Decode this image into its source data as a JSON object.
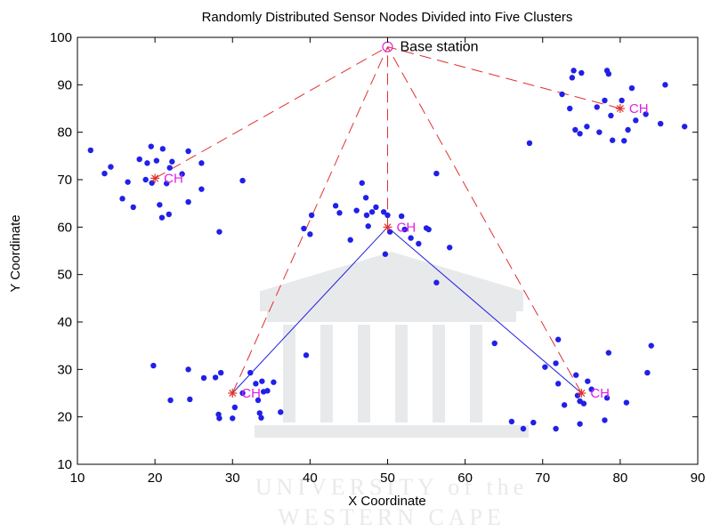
{
  "chart_data": {
    "type": "scatter",
    "title": "Randomly Distributed Sensor Nodes Divided into Five Clusters",
    "xlabel": "X Coordinate",
    "ylabel": "Y Coordinate",
    "xlim": [
      10,
      90
    ],
    "ylim": [
      10,
      100
    ],
    "xticks": [
      10,
      20,
      30,
      40,
      50,
      60,
      70,
      80,
      90
    ],
    "yticks": [
      10,
      20,
      30,
      40,
      50,
      60,
      70,
      80,
      90,
      100
    ],
    "grid": false,
    "colors": {
      "nodes": "#2020e8",
      "cluster_head": "#e03030",
      "ch_label": "#e020e0",
      "base_station": "#e020e0",
      "ch_to_bs_line": "#e03030",
      "inter_ch_line": "#2020e0"
    },
    "base_station": {
      "label": "Base station",
      "x": 50,
      "y": 98
    },
    "cluster_head_label": "CH",
    "cluster_heads": [
      {
        "x": 20,
        "y": 70.3
      },
      {
        "x": 80,
        "y": 85
      },
      {
        "x": 50,
        "y": 60
      },
      {
        "x": 30,
        "y": 25
      },
      {
        "x": 75,
        "y": 25
      }
    ],
    "nodes": [
      [
        11.7,
        76.2
      ],
      [
        13.5,
        71.3
      ],
      [
        14.3,
        72.7
      ],
      [
        15.8,
        66
      ],
      [
        16.5,
        69.5
      ],
      [
        17.2,
        64.2
      ],
      [
        18,
        74.3
      ],
      [
        18.8,
        70
      ],
      [
        19,
        73.5
      ],
      [
        19.5,
        77
      ],
      [
        19.6,
        69.3
      ],
      [
        20.2,
        74
      ],
      [
        20.6,
        64.7
      ],
      [
        20.9,
        62
      ],
      [
        21,
        76.5
      ],
      [
        21.5,
        69.2
      ],
      [
        21.8,
        62.7
      ],
      [
        21.9,
        72.5
      ],
      [
        22.2,
        73.8
      ],
      [
        23.5,
        71.2
      ],
      [
        24.3,
        76
      ],
      [
        24.3,
        65.3
      ],
      [
        26,
        73.5
      ],
      [
        26,
        68
      ],
      [
        28.3,
        59
      ],
      [
        31.3,
        69.8
      ],
      [
        72.5,
        88
      ],
      [
        73.5,
        85
      ],
      [
        73.8,
        91.5
      ],
      [
        74,
        93
      ],
      [
        74.2,
        80.5
      ],
      [
        74.8,
        79.7
      ],
      [
        75,
        92.5
      ],
      [
        75.7,
        81.2
      ],
      [
        77,
        85.3
      ],
      [
        77.3,
        80
      ],
      [
        78,
        86.7
      ],
      [
        78.5,
        92.3
      ],
      [
        78.3,
        93
      ],
      [
        78.8,
        83.5
      ],
      [
        79,
        78.3
      ],
      [
        80.2,
        86.7
      ],
      [
        80.5,
        78.2
      ],
      [
        81,
        80.5
      ],
      [
        81.5,
        89.3
      ],
      [
        82,
        82.5
      ],
      [
        83.3,
        83.8
      ],
      [
        85.2,
        81.8
      ],
      [
        85.8,
        90
      ],
      [
        88.3,
        81.2
      ],
      [
        39.2,
        59.7
      ],
      [
        40,
        58.5
      ],
      [
        40.2,
        62.5
      ],
      [
        43.3,
        64.5
      ],
      [
        43.8,
        63
      ],
      [
        45.2,
        57.3
      ],
      [
        46,
        63.5
      ],
      [
        46.7,
        69.3
      ],
      [
        47.2,
        66.2
      ],
      [
        47.3,
        62.5
      ],
      [
        47.5,
        60.2
      ],
      [
        48,
        63.2
      ],
      [
        48.5,
        64.2
      ],
      [
        49.5,
        63.2
      ],
      [
        49.7,
        54.3
      ],
      [
        50,
        62.5
      ],
      [
        50.3,
        59
      ],
      [
        51.8,
        62.3
      ],
      [
        52.2,
        59.5
      ],
      [
        53,
        57.7
      ],
      [
        54,
        56.5
      ],
      [
        55,
        59.8
      ],
      [
        55.3,
        59.5
      ],
      [
        56.3,
        71.3
      ],
      [
        56.3,
        48.3
      ],
      [
        58,
        55.7
      ],
      [
        63.8,
        35.5
      ],
      [
        68.3,
        77.7
      ],
      [
        19.8,
        30.8
      ],
      [
        22,
        23.5
      ],
      [
        24.3,
        30
      ],
      [
        24.5,
        23.7
      ],
      [
        26.3,
        28.2
      ],
      [
        27.8,
        28.3
      ],
      [
        28.2,
        20.5
      ],
      [
        28.3,
        19.7
      ],
      [
        28.5,
        29.3
      ],
      [
        30,
        19.7
      ],
      [
        30.3,
        22
      ],
      [
        31.3,
        25
      ],
      [
        32.3,
        29.3
      ],
      [
        33,
        27
      ],
      [
        33.3,
        23.5
      ],
      [
        33.5,
        20.8
      ],
      [
        33.7,
        19.8
      ],
      [
        33.8,
        27.5
      ],
      [
        34,
        25.3
      ],
      [
        34.5,
        25.5
      ],
      [
        35.3,
        27.3
      ],
      [
        36.2,
        21
      ],
      [
        39.5,
        33
      ],
      [
        66,
        19
      ],
      [
        67.5,
        17.5
      ],
      [
        68.8,
        18.8
      ],
      [
        70.3,
        30.5
      ],
      [
        71.7,
        31.3
      ],
      [
        71.7,
        17.5
      ],
      [
        72,
        36.3
      ],
      [
        72,
        27
      ],
      [
        72.8,
        22.5
      ],
      [
        74.3,
        28.8
      ],
      [
        74.5,
        24.5
      ],
      [
        74.8,
        23.3
      ],
      [
        74.8,
        18.5
      ],
      [
        75.3,
        22.8
      ],
      [
        75.8,
        27.5
      ],
      [
        76.3,
        25.8
      ],
      [
        78,
        19.3
      ],
      [
        78.3,
        24
      ],
      [
        78.5,
        33.5
      ],
      [
        80.8,
        23
      ],
      [
        83.5,
        29.3
      ],
      [
        84,
        35
      ]
    ]
  },
  "watermark": {
    "line1": "UNIVERSITY of the",
    "line2": "WESTERN CAPE"
  }
}
